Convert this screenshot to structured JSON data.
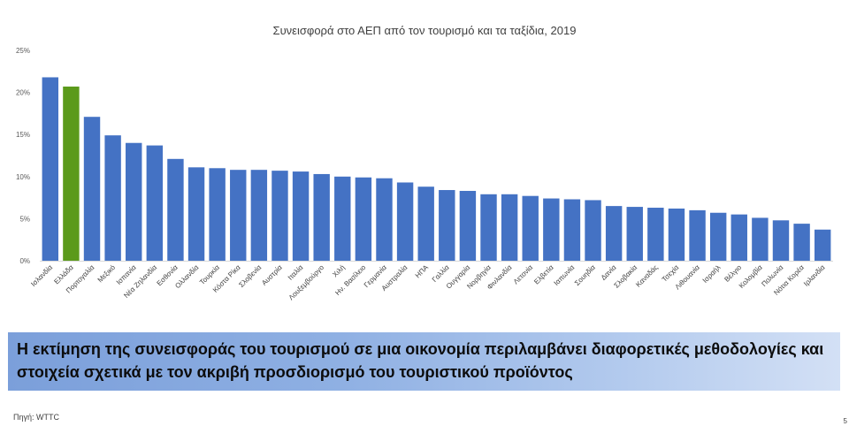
{
  "chart_data": {
    "type": "bar",
    "title": "Συνεισφορά στο ΑΕΠ από τον τουρισμό και τα ταξίδια, 2019",
    "xlabel": "",
    "ylabel": "",
    "ylim": [
      0,
      25
    ],
    "yticks": [
      "0%",
      "5%",
      "10%",
      "15%",
      "20%",
      "25%"
    ],
    "grid": false,
    "categories": [
      "Ισλανδία",
      "Ελλάδα",
      "Πορτογαλία",
      "Μεξικό",
      "Ισπανία",
      "Νέα Ζηλανδία",
      "Εσθονία",
      "Ολλανδία",
      "Τουρκία",
      "Κόστα Ρίκα",
      "Σλοβενία",
      "Αυστρία",
      "Ιταλία",
      "Λουξεμβούργο",
      "Χιλή",
      "Ην. Βασίλειο",
      "Γερμανία",
      "Αυστραλία",
      "ΗΠΑ",
      "Γαλλία",
      "Ουγγαρία",
      "Νορβηγία",
      "Φινλανδία",
      "Λετονία",
      "Ελβετία",
      "Ιαπωνία",
      "Σουηδία",
      "Δανία",
      "Σλοβακία",
      "Καναδάς",
      "Τσεχία",
      "Λιθουανία",
      "Ισραήλ",
      "Βέλγιο",
      "Κολομβία",
      "Πολωνία",
      "Νότια Κορέα",
      "Ιρλανδία"
    ],
    "values": [
      21.8,
      20.7,
      17.1,
      14.9,
      14.0,
      13.7,
      12.1,
      11.1,
      11.0,
      10.8,
      10.8,
      10.7,
      10.6,
      10.3,
      10.0,
      9.9,
      9.8,
      9.3,
      8.8,
      8.4,
      8.3,
      7.9,
      7.9,
      7.7,
      7.4,
      7.3,
      7.2,
      6.5,
      6.4,
      6.3,
      6.2,
      6.0,
      5.7,
      5.5,
      5.1,
      4.8,
      4.4,
      3.7
    ],
    "highlight_category": "Ελλάδα",
    "colors": {
      "bar": "#4472c4",
      "highlight": "#5b9a1b"
    }
  },
  "note": "Η εκτίμηση της συνεισφοράς του τουρισμού σε μια οικονομία περιλαμβάνει διαφορετικές μεθοδολογίες και στοιχεία σχετικά με τον ακριβή προσδιορισμό του τουριστικού προϊόντος",
  "source": "Πηγή: WTTC",
  "page_number": "5"
}
